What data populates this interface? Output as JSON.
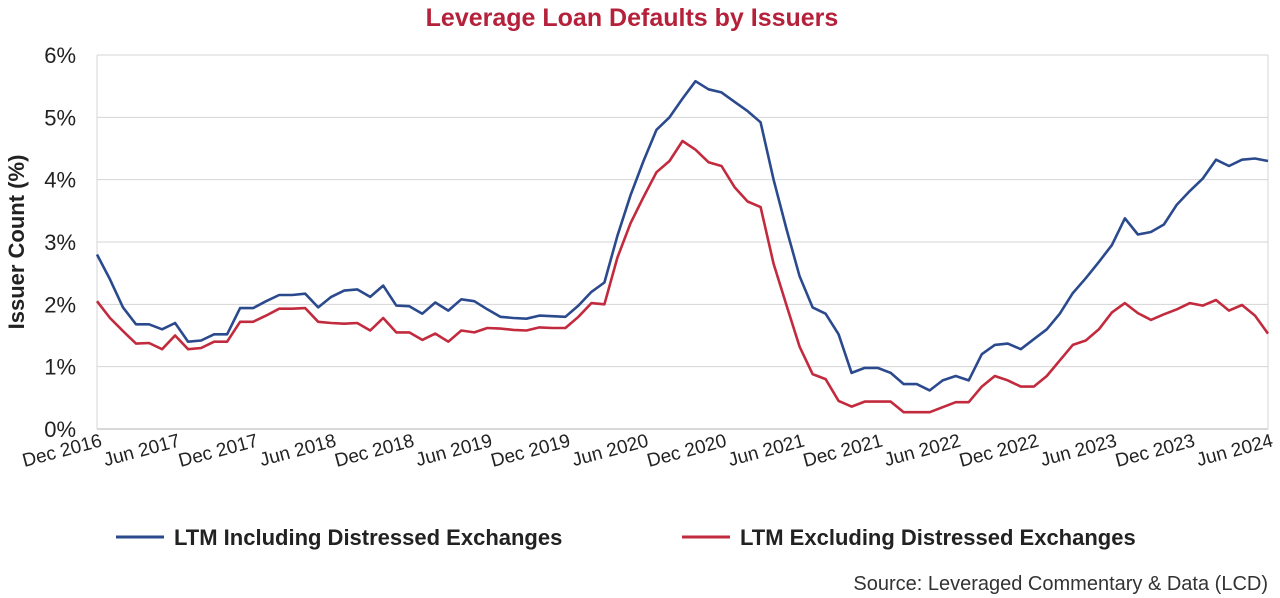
{
  "chart_data": {
    "type": "line",
    "title": "Leverage Loan Defaults by Issuers",
    "ylabel": "Issuer Count (%)",
    "xlabel": "",
    "ylim": [
      0,
      6
    ],
    "y_ticks": [
      "0%",
      "1%",
      "2%",
      "3%",
      "4%",
      "5%",
      "6%"
    ],
    "x_tick_labels": [
      "Dec 2016",
      "Jun 2017",
      "Dec 2017",
      "Jun 2018",
      "Dec 2018",
      "Jun 2019",
      "Dec 2019",
      "Jun 2020",
      "Dec 2020",
      "Jun 2021",
      "Dec 2021",
      "Jun 2022",
      "Dec 2022",
      "Jun 2023",
      "Dec 2023",
      "Jun 2024"
    ],
    "x_start": "Dec 2016",
    "x_end": "Jun 2024",
    "grid": true,
    "legend_position": "bottom",
    "source": "Source: Leveraged Commentary & Data (LCD)",
    "series": [
      {
        "name": "LTM Including Distressed Exchanges",
        "color": "#2b4a8e",
        "values": [
          2.8,
          2.4,
          1.95,
          1.68,
          1.68,
          1.6,
          1.7,
          1.4,
          1.42,
          1.52,
          1.52,
          1.94,
          1.94,
          2.05,
          2.15,
          2.15,
          2.17,
          1.95,
          2.12,
          2.22,
          2.24,
          2.12,
          2.3,
          1.98,
          1.97,
          1.85,
          2.03,
          1.9,
          2.08,
          2.05,
          1.92,
          1.8,
          1.78,
          1.77,
          1.82,
          1.81,
          1.8,
          1.98,
          2.2,
          2.35,
          3.1,
          3.75,
          4.3,
          4.8,
          5.0,
          5.3,
          5.58,
          5.45,
          5.4,
          5.25,
          5.1,
          4.92,
          4.0,
          3.2,
          2.45,
          1.95,
          1.85,
          1.52,
          0.9,
          0.98,
          0.98,
          0.9,
          0.72,
          0.72,
          0.62,
          0.78,
          0.85,
          0.78,
          1.2,
          1.35,
          1.37,
          1.28,
          1.44,
          1.6,
          1.85,
          2.18,
          2.42,
          2.68,
          2.95,
          3.38,
          3.12,
          3.16,
          3.28,
          3.6,
          3.82,
          4.02,
          4.32,
          4.22,
          4.32,
          4.34,
          4.3
        ]
      },
      {
        "name": "LTM Excluding Distressed Exchanges",
        "color": "#c22a3e",
        "values": [
          2.05,
          1.78,
          1.57,
          1.37,
          1.38,
          1.28,
          1.5,
          1.28,
          1.3,
          1.4,
          1.4,
          1.72,
          1.72,
          1.82,
          1.93,
          1.93,
          1.94,
          1.72,
          1.7,
          1.69,
          1.7,
          1.58,
          1.78,
          1.55,
          1.55,
          1.43,
          1.53,
          1.4,
          1.58,
          1.55,
          1.62,
          1.61,
          1.59,
          1.58,
          1.63,
          1.62,
          1.62,
          1.8,
          2.02,
          2.0,
          2.75,
          3.3,
          3.72,
          4.12,
          4.3,
          4.62,
          4.48,
          4.28,
          4.22,
          3.88,
          3.65,
          3.56,
          2.65,
          1.98,
          1.32,
          0.88,
          0.8,
          0.45,
          0.36,
          0.44,
          0.44,
          0.44,
          0.27,
          0.27,
          0.27,
          0.35,
          0.43,
          0.43,
          0.68,
          0.85,
          0.78,
          0.68,
          0.68,
          0.85,
          1.1,
          1.35,
          1.42,
          1.6,
          1.87,
          2.02,
          1.86,
          1.75,
          1.84,
          1.92,
          2.02,
          1.98,
          2.07,
          1.9,
          1.99,
          1.82,
          1.53
        ]
      }
    ]
  }
}
